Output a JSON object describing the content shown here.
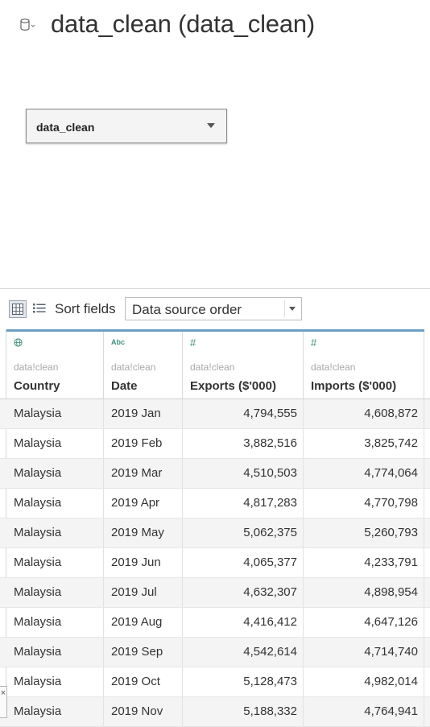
{
  "header": {
    "icon": "database-icon",
    "title": "data_clean (data_clean)"
  },
  "connection": {
    "selected": "data_clean"
  },
  "toolbar": {
    "grid_view_icon": "grid-view-icon",
    "list_view_icon": "list-view-icon",
    "sort_label": "Sort fields",
    "sort_value": "Data source order"
  },
  "table": {
    "columns": [
      {
        "type_icon": "globe-icon",
        "type_glyph": "",
        "source": "data!clean",
        "name": "Country"
      },
      {
        "type_icon": "abc-icon",
        "type_glyph": "Abc",
        "source": "data!clean",
        "name": "Date"
      },
      {
        "type_icon": "number-icon",
        "type_glyph": "#",
        "source": "data!clean",
        "name": "Exports ($'000)"
      },
      {
        "type_icon": "number-icon",
        "type_glyph": "#",
        "source": "data!clean",
        "name": "Imports ($'000)"
      }
    ],
    "rows": [
      [
        "Malaysia",
        "2019 Jan",
        "4,794,555",
        "4,608,872"
      ],
      [
        "Malaysia",
        "2019 Feb",
        "3,882,516",
        "3,825,742"
      ],
      [
        "Malaysia",
        "2019 Mar",
        "4,510,503",
        "4,774,064"
      ],
      [
        "Malaysia",
        "2019 Apr",
        "4,817,283",
        "4,770,798"
      ],
      [
        "Malaysia",
        "2019 May",
        "5,062,375",
        "5,260,793"
      ],
      [
        "Malaysia",
        "2019 Jun",
        "4,065,377",
        "4,233,791"
      ],
      [
        "Malaysia",
        "2019 Jul",
        "4,632,307",
        "4,898,954"
      ],
      [
        "Malaysia",
        "2019 Aug",
        "4,416,412",
        "4,647,126"
      ],
      [
        "Malaysia",
        "2019 Sep",
        "4,542,614",
        "4,714,740"
      ],
      [
        "Malaysia",
        "2019 Oct",
        "5,128,473",
        "4,982,014"
      ],
      [
        "Malaysia",
        "2019 Nov",
        "5,188,332",
        "4,764,941"
      ]
    ]
  },
  "side_tab": {
    "close_glyph": "×"
  },
  "colors": {
    "accent": "#6aa0c5",
    "type_icon": "#3f8f7f",
    "row_alt": "#f4f4f4"
  }
}
